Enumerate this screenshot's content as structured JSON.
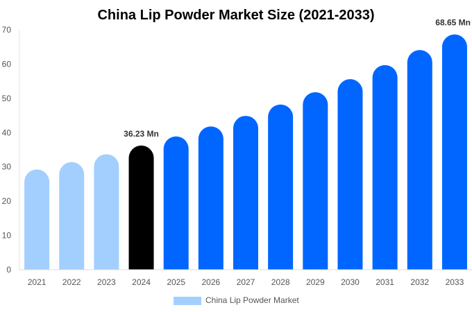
{
  "chart_data": {
    "type": "bar",
    "title": "China Lip Powder Market Size (2021-2033)",
    "xlabel": "",
    "ylabel": "",
    "ylim": [
      0,
      70
    ],
    "yticks": [
      0,
      10,
      20,
      30,
      40,
      50,
      60,
      70
    ],
    "categories": [
      "2021",
      "2022",
      "2023",
      "2024",
      "2025",
      "2026",
      "2027",
      "2028",
      "2029",
      "2030",
      "2031",
      "2032",
      "2033"
    ],
    "series": [
      {
        "name": "China Lip Powder Market",
        "values": [
          29.25,
          31.4,
          33.7,
          36.23,
          38.9,
          41.8,
          44.9,
          48.2,
          51.8,
          55.6,
          59.7,
          64.1,
          68.65
        ]
      }
    ],
    "data_labels": [
      {
        "category": "2024",
        "text": "36.23 Mn"
      },
      {
        "category": "2033",
        "text": "68.65 Mn"
      }
    ],
    "colors": {
      "historical": "#a3cfff",
      "current": "#000000",
      "forecast": "#0066ff"
    },
    "grid": false,
    "legend_position": "bottom"
  }
}
